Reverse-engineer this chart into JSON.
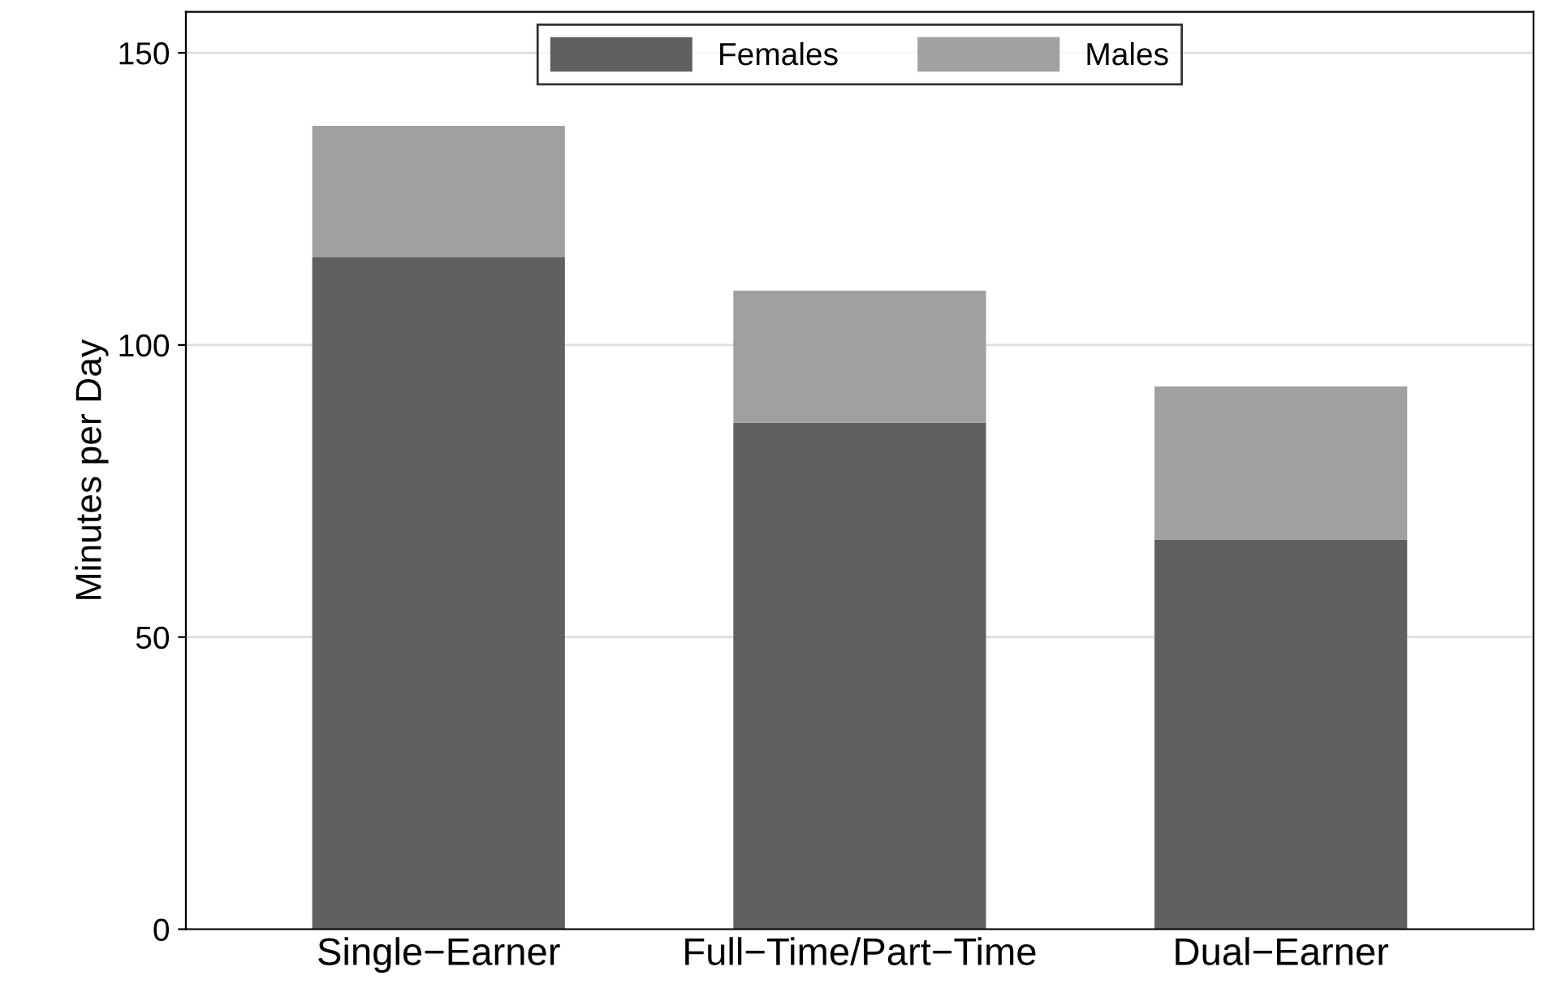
{
  "chart_data": {
    "type": "bar",
    "stacked": true,
    "ylabel": "Minutes per Day",
    "categories": [
      "Single−Earner",
      "Full−Time/Part−Time",
      "Dual−Earner"
    ],
    "series": [
      {
        "name": "Females",
        "color": "#606060",
        "values": [
          115,
          86.7,
          66.7
        ]
      },
      {
        "name": "Males",
        "color": "#a0a0a0",
        "values": [
          22.5,
          22.6,
          26.2
        ]
      }
    ],
    "ylim": [
      0,
      157
    ],
    "yticks": [
      0,
      50,
      100,
      150
    ],
    "grid": "y",
    "legend": "top"
  }
}
